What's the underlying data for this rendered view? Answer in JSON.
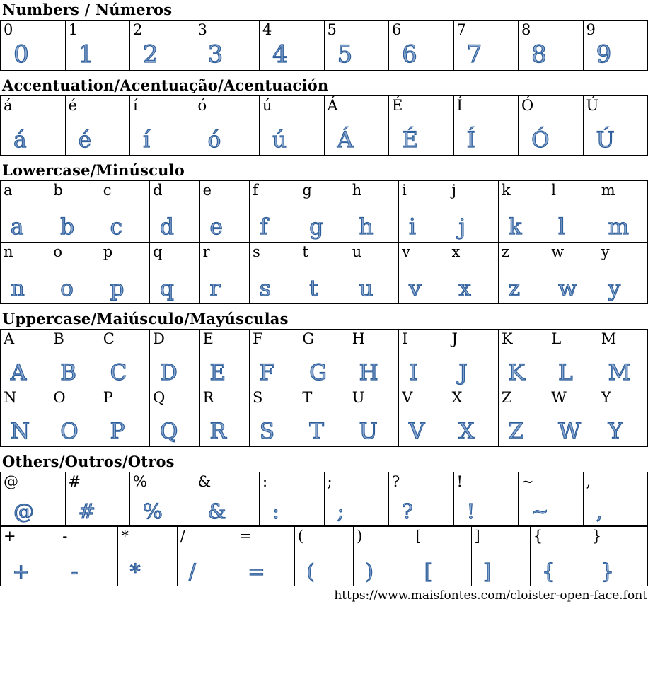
{
  "page": {
    "source_url": "https://www.maisfontes.com/cloister-open-face.font",
    "sample_color": "#2f5f9b",
    "border_color": "#000000"
  },
  "sections": [
    {
      "title": "Numbers / Números",
      "rows": [
        [
          "0",
          "1",
          "2",
          "3",
          "4",
          "5",
          "6",
          "7",
          "8",
          "9"
        ]
      ]
    },
    {
      "title": "Accentuation/Acentuação/Acentuación",
      "rows": [
        [
          "á",
          "é",
          "í",
          "ó",
          "ú",
          "Á",
          "É",
          "Í",
          "Ó",
          "Ú"
        ]
      ]
    },
    {
      "title": "Lowercase/Minúsculo",
      "rows": [
        [
          "a",
          "b",
          "c",
          "d",
          "e",
          "f",
          "g",
          "h",
          "i",
          "j",
          "k",
          "l",
          "m"
        ],
        [
          "n",
          "o",
          "p",
          "q",
          "r",
          "s",
          "t",
          "u",
          "v",
          "x",
          "z",
          "w",
          "y"
        ]
      ]
    },
    {
      "title": "Uppercase/Maiúsculo/Mayúsculas",
      "rows": [
        [
          "A",
          "B",
          "C",
          "D",
          "E",
          "F",
          "G",
          "H",
          "I",
          "J",
          "K",
          "L",
          "M"
        ],
        [
          "N",
          "O",
          "P",
          "Q",
          "R",
          "S",
          "T",
          "U",
          "V",
          "X",
          "Z",
          "W",
          "Y"
        ]
      ]
    },
    {
      "title": "Others/Outros/Otros",
      "rows": [
        [
          "@",
          "#",
          "%",
          "&",
          ":",
          ";",
          "?",
          "!",
          "~",
          ","
        ],
        [
          "+",
          "-",
          "*",
          "/",
          "=",
          "(",
          ")",
          "[",
          "]",
          "{",
          "}"
        ]
      ]
    }
  ]
}
